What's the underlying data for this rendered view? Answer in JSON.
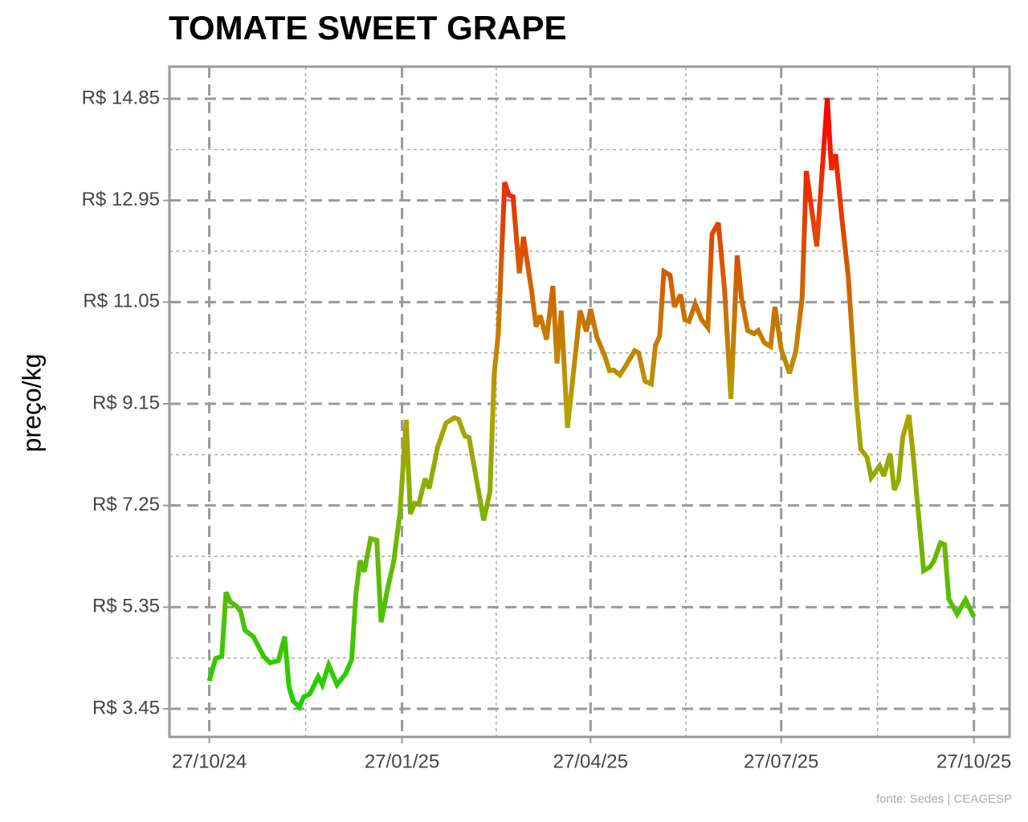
{
  "chart_data": {
    "type": "line",
    "title": "TOMATE SWEET GRAPE",
    "y_label": "preço/kg",
    "source": "fonte: Sedes | CEAGESP",
    "x": [
      "2024-10-27",
      "2024-10-30",
      "2024-11-02",
      "2024-11-04",
      "2024-11-06",
      "2024-11-09",
      "2024-11-11",
      "2024-11-13",
      "2024-11-17",
      "2024-11-22",
      "2024-11-25",
      "2024-11-29",
      "2024-12-02",
      "2024-12-04",
      "2024-12-06",
      "2024-12-09",
      "2024-12-11",
      "2024-12-14",
      "2024-12-18",
      "2024-12-20",
      "2024-12-23",
      "2024-12-27",
      "2024-12-31",
      "2025-01-03",
      "2025-01-05",
      "2025-01-07",
      "2025-01-09",
      "2025-01-12",
      "2025-01-15",
      "2025-01-17",
      "2025-01-20",
      "2025-01-23",
      "2025-01-26",
      "2025-01-29",
      "2025-01-31",
      "2025-02-02",
      "2025-02-04",
      "2025-02-07",
      "2025-02-09",
      "2025-02-13",
      "2025-02-17",
      "2025-02-21",
      "2025-02-23",
      "2025-02-26",
      "2025-02-28",
      "2025-03-07",
      "2025-03-10",
      "2025-03-12",
      "2025-03-14",
      "2025-03-17",
      "2025-03-19",
      "2025-03-21",
      "2025-03-24",
      "2025-03-26",
      "2025-03-30",
      "2025-04-01",
      "2025-04-03",
      "2025-04-06",
      "2025-04-09",
      "2025-04-11",
      "2025-04-13",
      "2025-04-16",
      "2025-04-22",
      "2025-04-25",
      "2025-04-27",
      "2025-04-30",
      "2025-05-04",
      "2025-05-06",
      "2025-05-08",
      "2025-05-11",
      "2025-05-14",
      "2025-05-18",
      "2025-05-20",
      "2025-05-23",
      "2025-05-26",
      "2025-05-28",
      "2025-05-30",
      "2025-06-01",
      "2025-06-04",
      "2025-06-06",
      "2025-06-09",
      "2025-06-11",
      "2025-06-13",
      "2025-06-16",
      "2025-06-19",
      "2025-06-22",
      "2025-06-24",
      "2025-06-27",
      "2025-06-30",
      "2025-07-03",
      "2025-07-06",
      "2025-07-08",
      "2025-07-11",
      "2025-07-14",
      "2025-07-16",
      "2025-07-19",
      "2025-07-22",
      "2025-07-24",
      "2025-07-27",
      "2025-07-31",
      "2025-08-03",
      "2025-08-06",
      "2025-08-08",
      "2025-08-13",
      "2025-08-18",
      "2025-08-20",
      "2025-08-22",
      "2025-08-25",
      "2025-08-28",
      "2025-09-01",
      "2025-09-03",
      "2025-09-06",
      "2025-09-08",
      "2025-09-12",
      "2025-09-14",
      "2025-09-17",
      "2025-09-19",
      "2025-09-21",
      "2025-09-23",
      "2025-09-26",
      "2025-09-28",
      "2025-09-30",
      "2025-10-03",
      "2025-10-06",
      "2025-10-08",
      "2025-10-11",
      "2025-10-13",
      "2025-10-15",
      "2025-10-19",
      "2025-10-23",
      "2025-10-27"
    ],
    "values": [
      3.97,
      4.39,
      4.43,
      5.63,
      5.45,
      5.37,
      5.27,
      4.92,
      4.8,
      4.43,
      4.31,
      4.35,
      4.8,
      3.87,
      3.6,
      3.48,
      3.67,
      3.73,
      4.05,
      3.9,
      4.27,
      3.9,
      4.1,
      4.37,
      5.6,
      6.22,
      6.01,
      6.63,
      6.6,
      5.07,
      5.67,
      6.19,
      7.09,
      8.85,
      7.09,
      7.29,
      7.27,
      7.75,
      7.57,
      8.34,
      8.79,
      8.89,
      8.86,
      8.55,
      8.52,
      6.97,
      7.51,
      9.69,
      10.47,
      13.29,
      13.05,
      13.02,
      11.59,
      12.27,
      11.22,
      10.59,
      10.8,
      10.35,
      11.35,
      9.9,
      10.89,
      8.7,
      10.89,
      10.5,
      10.92,
      10.4,
      10.02,
      9.77,
      9.78,
      9.69,
      9.87,
      10.14,
      10.1,
      9.57,
      9.52,
      10.24,
      10.42,
      11.62,
      11.55,
      10.96,
      11.19,
      10.72,
      10.69,
      11.02,
      10.72,
      10.57,
      12.32,
      12.53,
      11.28,
      9.24,
      11.92,
      11.14,
      10.52,
      10.46,
      10.52,
      10.29,
      10.22,
      10.96,
      10.17,
      9.72,
      10.13,
      11.14,
      13.5,
      12.09,
      14.86,
      13.52,
      13.81,
      12.61,
      11.55,
      9.15,
      8.3,
      8.15,
      7.77,
      7.99,
      7.8,
      8.22,
      7.54,
      7.72,
      8.52,
      8.94,
      8.19,
      7.32,
      6.03,
      6.1,
      6.22,
      6.55,
      6.52,
      5.5,
      5.22,
      5.49,
      5.17
    ],
    "color_scale": [
      "#1fd000",
      "#b4a000",
      "#ff0000"
    ],
    "xlim": [
      "2024-10-08",
      "2025-11-13"
    ],
    "ylim": [
      2.925,
      15.45
    ],
    "xticks": [
      {
        "value": "2024-10-27",
        "label": "27/10/24"
      },
      {
        "value": "2025-01-27",
        "label": "27/01/25"
      },
      {
        "value": "2025-04-27",
        "label": "27/04/25"
      },
      {
        "value": "2025-07-27",
        "label": "27/07/25"
      },
      {
        "value": "2025-10-27",
        "label": "27/10/25"
      }
    ],
    "yticks": [
      {
        "value": 3.45,
        "label": "R$ 3.45"
      },
      {
        "value": 5.35,
        "label": "R$ 5.35"
      },
      {
        "value": 7.25,
        "label": "R$ 7.25"
      },
      {
        "value": 9.15,
        "label": "R$ 9.15"
      },
      {
        "value": 11.05,
        "label": "R$ 11.05"
      },
      {
        "value": 12.95,
        "label": "R$ 12.95"
      },
      {
        "value": 14.85,
        "label": "R$ 14.85"
      }
    ],
    "grid": true
  }
}
